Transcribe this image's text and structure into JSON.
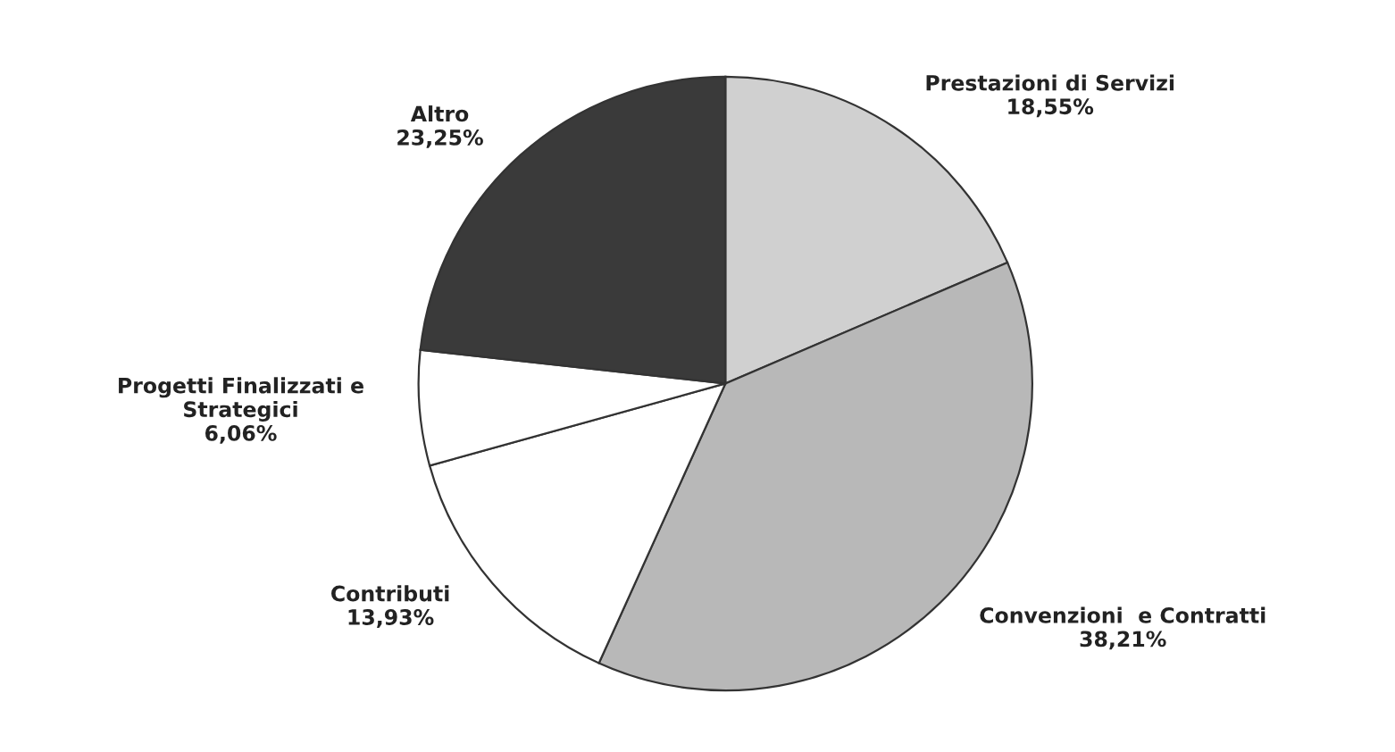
{
  "chart_data": {
    "type": "pie",
    "categories": [
      "Prestazioni di Servizi",
      "Convenzioni  e Contratti",
      "Contributi",
      "Progetti Finalizzati e Strategici",
      "Altro"
    ],
    "values": [
      18.55,
      38.21,
      13.93,
      6.06,
      23.25
    ],
    "value_labels": [
      "18,55%",
      "38,21%",
      "13,93%",
      "6,06%",
      "23,25%"
    ],
    "colors": [
      "#d0d0d0",
      "#b8b8b8",
      "#ffffff",
      "#ffffff",
      "#3a3a3a"
    ]
  }
}
